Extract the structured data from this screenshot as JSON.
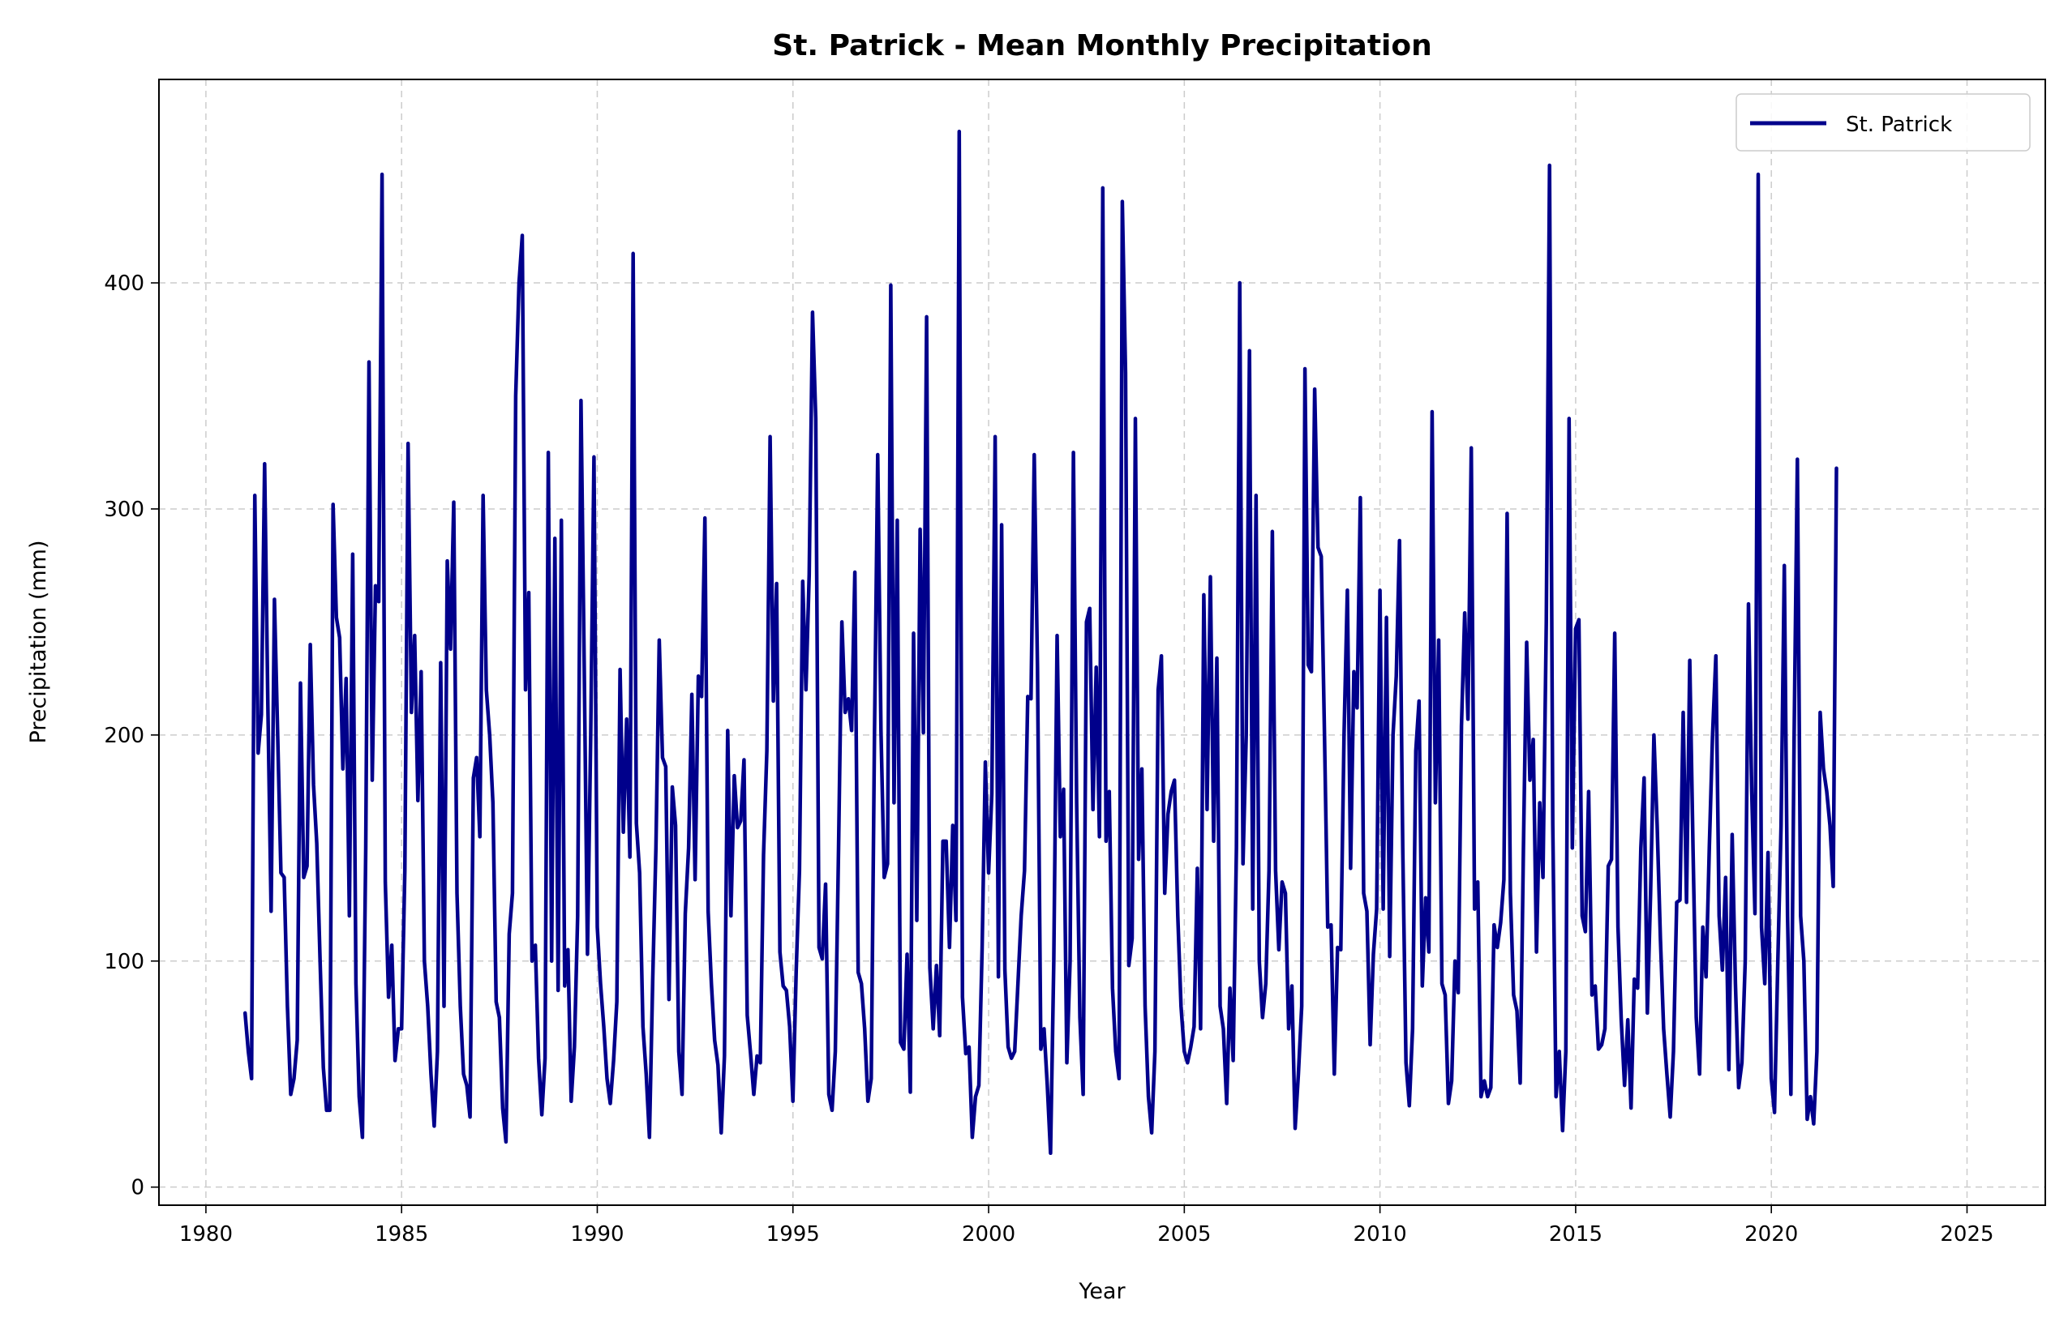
{
  "chart_data": {
    "type": "line",
    "title": "St. Patrick - Mean Monthly Precipitation",
    "xlabel": "Year",
    "ylabel": "Precipitation (mm)",
    "xlim": [
      1978.8,
      2027.0
    ],
    "ylim": [
      -8,
      490
    ],
    "xticks": [
      1980,
      1985,
      1990,
      1995,
      2000,
      2005,
      2010,
      2015,
      2020,
      2025
    ],
    "yticks": [
      0,
      100,
      200,
      300,
      400
    ],
    "grid": true,
    "legend": {
      "position": "top-right",
      "entries": [
        "St. Patrick"
      ]
    },
    "line_color": "#00008b",
    "series": [
      {
        "name": "St. Patrick",
        "x_start": 1981.0,
        "x_step": 0.08333,
        "values": [
          77,
          60,
          48,
          306,
          192,
          209,
          320,
          213,
          122,
          260,
          200,
          139,
          137,
          80,
          41,
          48,
          65,
          223,
          137,
          142,
          240,
          178,
          152,
          100,
          53,
          34,
          34,
          302,
          252,
          243,
          185,
          225,
          120,
          280,
          90,
          40,
          22,
          150,
          365,
          180,
          266,
          259,
          448,
          135,
          84,
          107,
          56,
          70,
          70,
          140,
          329,
          210,
          244,
          171,
          228,
          100,
          80,
          50,
          27,
          60,
          232,
          80,
          277,
          238,
          303,
          130,
          80,
          50,
          45,
          31,
          181,
          190,
          155,
          306,
          220,
          200,
          170,
          82,
          75,
          35,
          20,
          112,
          130,
          350,
          400,
          421,
          220,
          263,
          100,
          107,
          57,
          32,
          57,
          325,
          100,
          287,
          87,
          295,
          89,
          105,
          38,
          62,
          120,
          348,
          230,
          103,
          200,
          323,
          115,
          90,
          71,
          48,
          37,
          56,
          82,
          229,
          157,
          207,
          146,
          413,
          161,
          139,
          71,
          50,
          22,
          91,
          150,
          242,
          190,
          186,
          83,
          177,
          160,
          60,
          41,
          121,
          150,
          218,
          136,
          226,
          217,
          296,
          122,
          90,
          65,
          54,
          24,
          58,
          202,
          120,
          182,
          159,
          162,
          189,
          76,
          59,
          41,
          58,
          55,
          147,
          193,
          332,
          215,
          267,
          104,
          89,
          87,
          71,
          38,
          96,
          140,
          268,
          220,
          271,
          387,
          340,
          106,
          101,
          134,
          41,
          34,
          60,
          150,
          250,
          210,
          216,
          202,
          272,
          95,
          90,
          70,
          38,
          48,
          200,
          324,
          202,
          137,
          143,
          399,
          170,
          295,
          64,
          61,
          103,
          42,
          245,
          118,
          291,
          201,
          385,
          97,
          70,
          98,
          67,
          153,
          153,
          106,
          160,
          118,
          467,
          84,
          59,
          62,
          22,
          40,
          45,
          105,
          188,
          139,
          174,
          332,
          93,
          293,
          96,
          62,
          57,
          60,
          90,
          120,
          140,
          217,
          216,
          324,
          230,
          61,
          70,
          45,
          15,
          100,
          244,
          155,
          176,
          55,
          100,
          325,
          170,
          75,
          41,
          250,
          256,
          167,
          230,
          155,
          442,
          153,
          175,
          88,
          60,
          48,
          436,
          360,
          98,
          110,
          340,
          145,
          185,
          80,
          40,
          24,
          60,
          220,
          235,
          130,
          165,
          175,
          180,
          120,
          80,
          60,
          55,
          62,
          71,
          141,
          70,
          262,
          167,
          270,
          153,
          234,
          80,
          70,
          37,
          88,
          56,
          150,
          400,
          143,
          200,
          370,
          123,
          306,
          100,
          75,
          90,
          140,
          290,
          140,
          105,
          135,
          130,
          70,
          89,
          26,
          50,
          80,
          362,
          231,
          228,
          353,
          283,
          279,
          200,
          115,
          116,
          50,
          106,
          105,
          200,
          264,
          141,
          228,
          212,
          305,
          130,
          122,
          63,
          103,
          123,
          264,
          123,
          252,
          102,
          200,
          226,
          286,
          150,
          55,
          36,
          70,
          193,
          215,
          89,
          128,
          104,
          343,
          170,
          242,
          90,
          85,
          37,
          47,
          100,
          86,
          204,
          254,
          207,
          327,
          123,
          135,
          40,
          47,
          40,
          44,
          116,
          106,
          117,
          136,
          298,
          130,
          85,
          78,
          46,
          150,
          241,
          180,
          198,
          104,
          170,
          137,
          250,
          452,
          160,
          40,
          60,
          25,
          60,
          340,
          150,
          247,
          251,
          120,
          113,
          175,
          85,
          89,
          61,
          63,
          70,
          142,
          145,
          245,
          115,
          74,
          45,
          74,
          35,
          92,
          88,
          150,
          181,
          77,
          130,
          200,
          160,
          110,
          70,
          50,
          31,
          60,
          126,
          127,
          210,
          126,
          233,
          150,
          75,
          50,
          115,
          93,
          150,
          200,
          235,
          120,
          96,
          137,
          52,
          156,
          90,
          44,
          55,
          100,
          258,
          175,
          121,
          448,
          115,
          90,
          148,
          48,
          33,
          100,
          160,
          275,
          120,
          41,
          200,
          322,
          120,
          100,
          30,
          40,
          28,
          60,
          210,
          185,
          175,
          160,
          133,
          318
        ]
      }
    ]
  }
}
